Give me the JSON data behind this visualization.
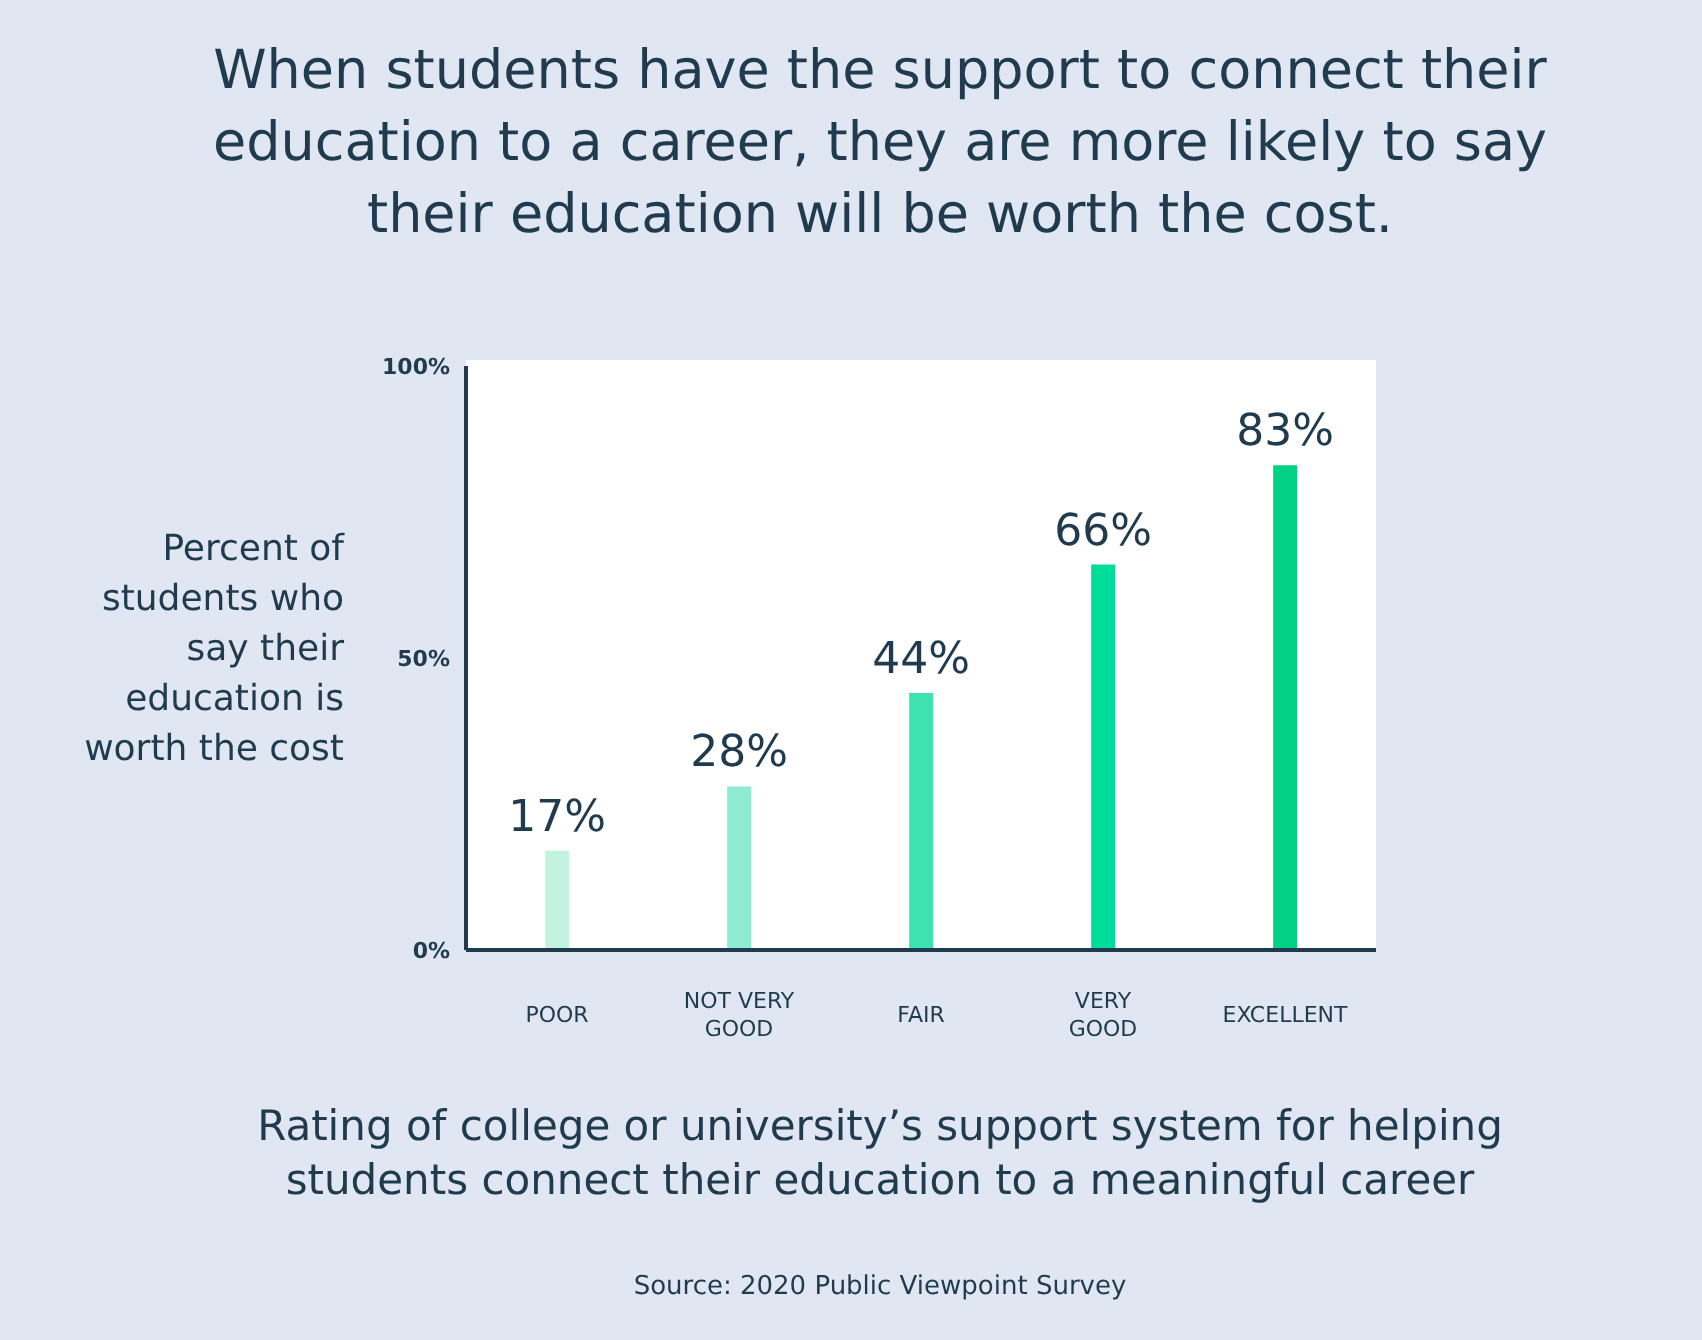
{
  "chart_data": {
    "type": "bar",
    "title": "When students have the support to connect their education to a career, they are more likely to say their education will be worth the cost.",
    "ylabel": "Percent of students who say their education is worth the cost",
    "xlabel": "Rating of college or university’s support system for helping students connect their education to a meaningful career",
    "categories": [
      "POOR",
      "NOT VERY GOOD",
      "FAIR",
      "VERY GOOD",
      "EXCELLENT"
    ],
    "values": [
      17,
      28,
      44,
      66,
      83
    ],
    "colors": [
      "#c3f2e1",
      "#8eead0",
      "#3ee2b0",
      "#00dc9a",
      "#00d184"
    ],
    "value_labels": [
      "17%",
      "28%",
      "44%",
      "66%",
      "83%"
    ],
    "ylim": [
      0,
      100
    ],
    "yticks": [
      {
        "value": 0,
        "label": "0%"
      },
      {
        "value": 50,
        "label": "50%"
      },
      {
        "value": 100,
        "label": "100%"
      }
    ],
    "grid": false,
    "legend": false,
    "annotations": [
      "Source: 2020 Public Viewpoint Survey"
    ]
  }
}
